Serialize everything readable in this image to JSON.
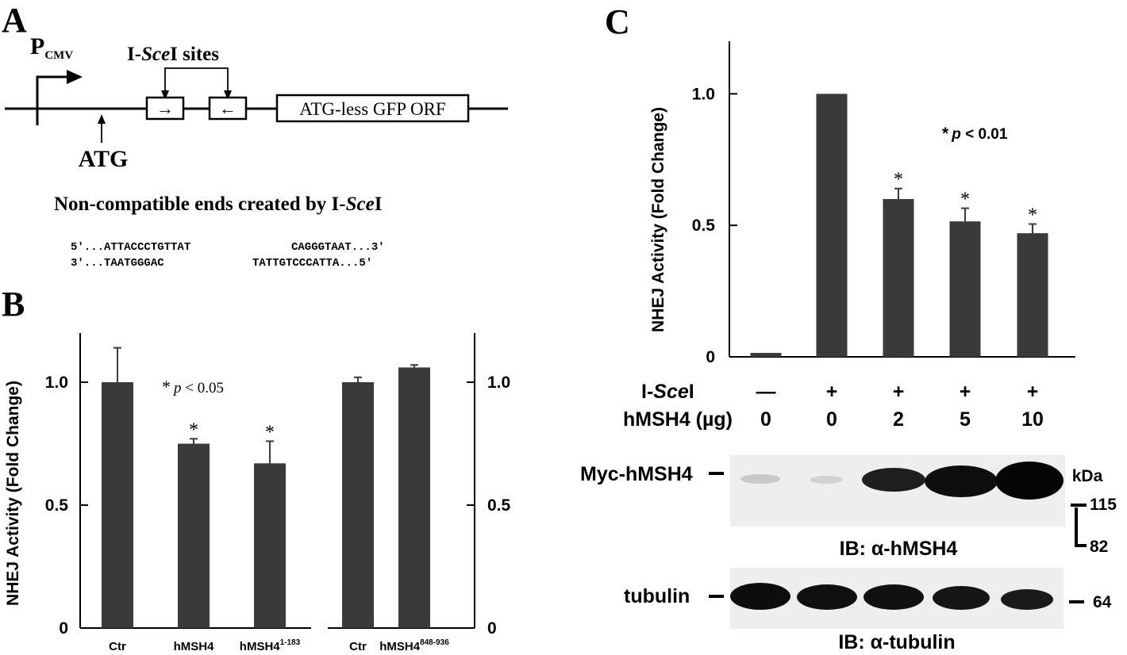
{
  "panels": {
    "a": {
      "letter": "A",
      "promoter_main": "P",
      "promoter_sub": "CMV",
      "sites_pre": "I-",
      "sites_italic": "Sce",
      "sites_post": "I sites",
      "site1_arrow": "→",
      "site2_arrow": "←",
      "gfp_label": "ATG-less GFP ORF",
      "atg_label": "ATG",
      "ends_title_pre": "Non-compatible ends created by I-",
      "ends_title_italic": "Sce",
      "ends_title_post": "I",
      "seq_top_left": "5'...ATTACCCTGTTAT",
      "seq_top_right": "CAGGGTAAT...3'",
      "seq_bot_left": "3'...TAATGGGAC",
      "seq_bot_right": "TATTGTCCCATTA...5'"
    },
    "b": {
      "letter": "B",
      "ylabel": "NHEJ Activity (Fold Change)",
      "sig_star": "*",
      "sig_p": "p",
      "sig_rest": " < 0.05",
      "ylim": [
        0,
        1.2
      ],
      "ticks": [
        {
          "value": 0,
          "label": "0"
        },
        {
          "value": 0.5,
          "label": "0.5"
        },
        {
          "value": 1.0,
          "label": "1.0"
        }
      ]
    },
    "c": {
      "letter": "C",
      "ylabel": "NHEJ Activity (Fold Change)",
      "sig_star": "*",
      "sig_p": "p",
      "sig_rest": " < 0.01",
      "ylim": [
        0,
        1.2
      ],
      "ticks": [
        {
          "value": 0,
          "label": "0"
        },
        {
          "value": 0.5,
          "label": "0.5"
        },
        {
          "value": 1.0,
          "label": "1.0"
        }
      ],
      "isce_pre": "I-",
      "isce_italic": "Sce",
      "isce_post": "I",
      "isce_values": [
        "—",
        "+",
        "+",
        "+",
        "+"
      ],
      "hmsh4_label": "hMSH4 (µg)",
      "hmsh4_values": [
        "0",
        "0",
        "2",
        "5",
        "10"
      ],
      "blot1_label": "Myc-hMSH4",
      "blot1_ib": "IB: α-hMSH4",
      "kda_label": "kDa",
      "kda_115": "115",
      "kda_82": "82",
      "blot2_label": "tubulin",
      "blot2_ib": "IB: α-tubulin",
      "kda_64": "64"
    }
  },
  "chart_data": [
    {
      "type": "bar",
      "panel": "B-left",
      "categories": [
        "Ctr",
        "hMSH4",
        "hMSH4¹⁻¹⁸³"
      ],
      "values": [
        1.0,
        0.75,
        0.67
      ],
      "errors": [
        0.14,
        0.02,
        0.09
      ],
      "significant": [
        false,
        true,
        true
      ],
      "ylabel": "NHEJ Activity (Fold Change)",
      "ylim": [
        0,
        1.2
      ],
      "color": "#3a3a3a"
    },
    {
      "type": "bar",
      "panel": "B-right",
      "categories": [
        "Ctr",
        "hMSH4⁸⁴⁸⁻⁹³⁶"
      ],
      "values": [
        1.0,
        1.06
      ],
      "errors": [
        0.02,
        0.01
      ],
      "significant": [
        false,
        false
      ],
      "ylim": [
        0,
        1.2
      ],
      "color": "#3a3a3a"
    },
    {
      "type": "bar",
      "panel": "C",
      "categories": [
        "— / 0",
        "+ / 0",
        "+ / 2",
        "+ / 5",
        "+ / 10"
      ],
      "values": [
        0.015,
        1.0,
        0.6,
        0.515,
        0.47
      ],
      "errors": [
        0,
        0,
        0.04,
        0.05,
        0.035
      ],
      "significant": [
        false,
        false,
        true,
        true,
        true
      ],
      "ylabel": "NHEJ Activity (Fold Change)",
      "ylim": [
        0,
        1.2
      ],
      "color": "#3a3a3a"
    }
  ]
}
